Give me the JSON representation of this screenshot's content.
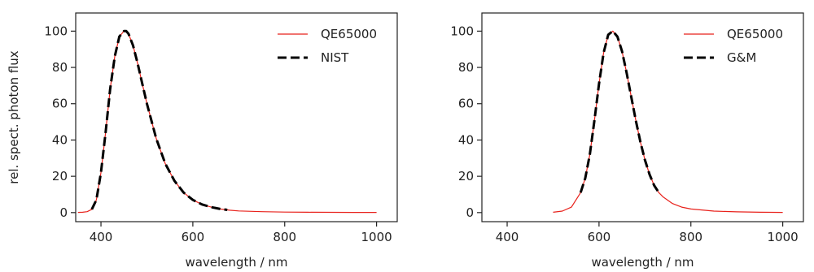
{
  "chart_data": [
    {
      "type": "line",
      "title": "",
      "xlabel": "wavelength / nm",
      "ylabel": "rel. spect. photon flux",
      "xlim": [
        345,
        1045
      ],
      "ylim": [
        -5,
        110
      ],
      "xticks": [
        400,
        600,
        800,
        1000
      ],
      "yticks": [
        0,
        20,
        40,
        60,
        80,
        100
      ],
      "grid": false,
      "legend_position": "top-right",
      "series": [
        {
          "name": "QE65000",
          "color": "#e8211b",
          "style": "solid",
          "x": [
            350,
            360,
            370,
            380,
            390,
            400,
            410,
            420,
            430,
            440,
            450,
            455,
            460,
            470,
            480,
            490,
            500,
            520,
            540,
            560,
            580,
            600,
            620,
            640,
            660,
            680,
            700,
            750,
            800,
            850,
            900,
            950,
            1000
          ],
          "y": [
            0.1,
            0.2,
            0.5,
            1.8,
            7,
            22,
            44,
            68,
            86,
            97,
            100,
            100,
            98.5,
            92,
            82,
            71,
            60,
            41,
            27,
            17.5,
            11,
            7,
            4.5,
            3,
            2,
            1.3,
            0.9,
            0.5,
            0.3,
            0.2,
            0.15,
            0.1,
            0.1
          ]
        },
        {
          "name": "NIST",
          "color": "#000000",
          "style": "dashed",
          "x": [
            380,
            390,
            400,
            410,
            420,
            430,
            440,
            450,
            455,
            460,
            470,
            480,
            490,
            500,
            520,
            540,
            560,
            580,
            600,
            620,
            640,
            660,
            675
          ],
          "y": [
            1.8,
            7,
            22,
            44,
            68,
            86,
            97,
            100,
            100,
            98.5,
            92,
            82,
            71,
            60,
            41,
            27,
            17.5,
            11,
            7,
            4.5,
            3,
            2,
            1.5
          ]
        }
      ]
    },
    {
      "type": "line",
      "title": "",
      "xlabel": "wavelength / nm",
      "ylabel": "",
      "xlim": [
        345,
        1045
      ],
      "ylim": [
        -5,
        110
      ],
      "xticks": [
        400,
        600,
        800,
        1000
      ],
      "yticks": [
        0,
        20,
        40,
        60,
        80,
        100
      ],
      "grid": false,
      "legend_position": "top-right",
      "series": [
        {
          "name": "QE65000",
          "color": "#e8211b",
          "style": "solid",
          "x": [
            500,
            520,
            540,
            560,
            570,
            580,
            590,
            600,
            610,
            620,
            630,
            640,
            650,
            660,
            670,
            680,
            690,
            700,
            710,
            720,
            730,
            740,
            760,
            780,
            800,
            850,
            900,
            950,
            1000
          ],
          "y": [
            0.2,
            0.8,
            3,
            11,
            19,
            32,
            51,
            71,
            88,
            98,
            100,
            97,
            89,
            77,
            64,
            51,
            39,
            29,
            21,
            15,
            11,
            8.5,
            5,
            3,
            2,
            0.8,
            0.4,
            0.2,
            0.1
          ]
        },
        {
          "name": "G&M",
          "color": "#000000",
          "style": "dashed",
          "x": [
            560,
            570,
            580,
            590,
            600,
            610,
            620,
            630,
            640,
            650,
            660,
            670,
            680,
            690,
            700,
            710,
            720,
            730
          ],
          "y": [
            11,
            19,
            32,
            51,
            71,
            88,
            98,
            100,
            97,
            89,
            77,
            64,
            51,
            39,
            29,
            21,
            15,
            11
          ]
        }
      ]
    }
  ]
}
